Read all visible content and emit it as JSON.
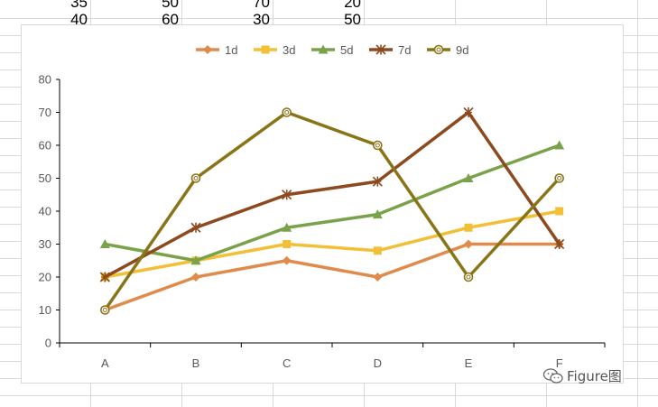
{
  "sheet": {
    "rows": [
      [
        "35",
        "50",
        "70",
        "20"
      ],
      [
        "40",
        "60",
        "30",
        "50"
      ]
    ]
  },
  "chart_data": {
    "type": "line",
    "categories": [
      "A",
      "B",
      "C",
      "D",
      "E",
      "F"
    ],
    "ylim": [
      0,
      80
    ],
    "yticks": [
      0,
      10,
      20,
      30,
      40,
      50,
      60,
      70,
      80
    ],
    "legend_position": "top",
    "grid": false,
    "series": [
      {
        "name": "1d",
        "values": [
          10,
          20,
          25,
          20,
          30,
          30
        ],
        "color": "#e08a4c",
        "marker": "diamond"
      },
      {
        "name": "3d",
        "values": [
          20,
          25,
          30,
          28,
          35,
          40
        ],
        "color": "#f2c037",
        "marker": "square"
      },
      {
        "name": "5d",
        "values": [
          30,
          25,
          35,
          39,
          50,
          60
        ],
        "color": "#7aa24a",
        "marker": "triangle"
      },
      {
        "name": "7d",
        "values": [
          20,
          35,
          45,
          49,
          70,
          30
        ],
        "color": "#8c4a1e",
        "marker": "star"
      },
      {
        "name": "9d",
        "values": [
          10,
          50,
          70,
          60,
          20,
          50
        ],
        "color": "#8a7418",
        "marker": "circle"
      }
    ]
  },
  "watermark": {
    "text": "Figure图",
    "icon": "wechat-icon"
  }
}
